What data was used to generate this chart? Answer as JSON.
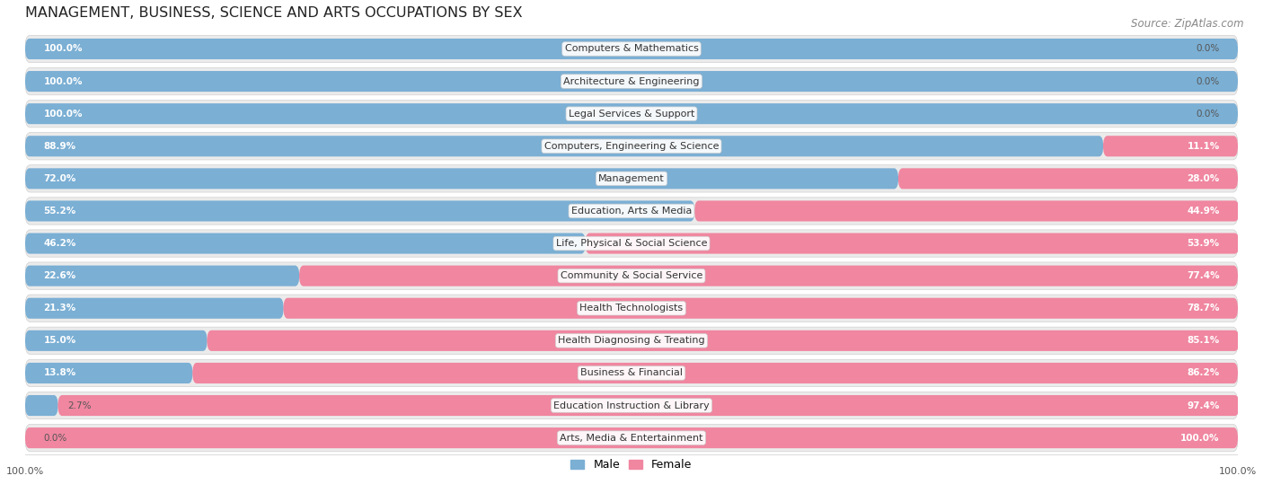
{
  "title": "MANAGEMENT, BUSINESS, SCIENCE AND ARTS OCCUPATIONS BY SEX",
  "source": "Source: ZipAtlas.com",
  "categories": [
    "Computers & Mathematics",
    "Architecture & Engineering",
    "Legal Services & Support",
    "Computers, Engineering & Science",
    "Management",
    "Education, Arts & Media",
    "Life, Physical & Social Science",
    "Community & Social Service",
    "Health Technologists",
    "Health Diagnosing & Treating",
    "Business & Financial",
    "Education Instruction & Library",
    "Arts, Media & Entertainment"
  ],
  "male": [
    100.0,
    100.0,
    100.0,
    88.9,
    72.0,
    55.2,
    46.2,
    22.6,
    21.3,
    15.0,
    13.8,
    2.7,
    0.0
  ],
  "female": [
    0.0,
    0.0,
    0.0,
    11.1,
    28.0,
    44.9,
    53.9,
    77.4,
    78.7,
    85.1,
    86.2,
    97.4,
    100.0
  ],
  "male_color": "#7bafd4",
  "female_color": "#f086a0",
  "row_bg_color": "#ebebeb",
  "title_fontsize": 11.5,
  "source_fontsize": 8.5,
  "label_fontsize": 8,
  "bar_label_fontsize": 7.5,
  "legend_fontsize": 9,
  "figsize": [
    14.06,
    5.59
  ],
  "dpi": 100
}
